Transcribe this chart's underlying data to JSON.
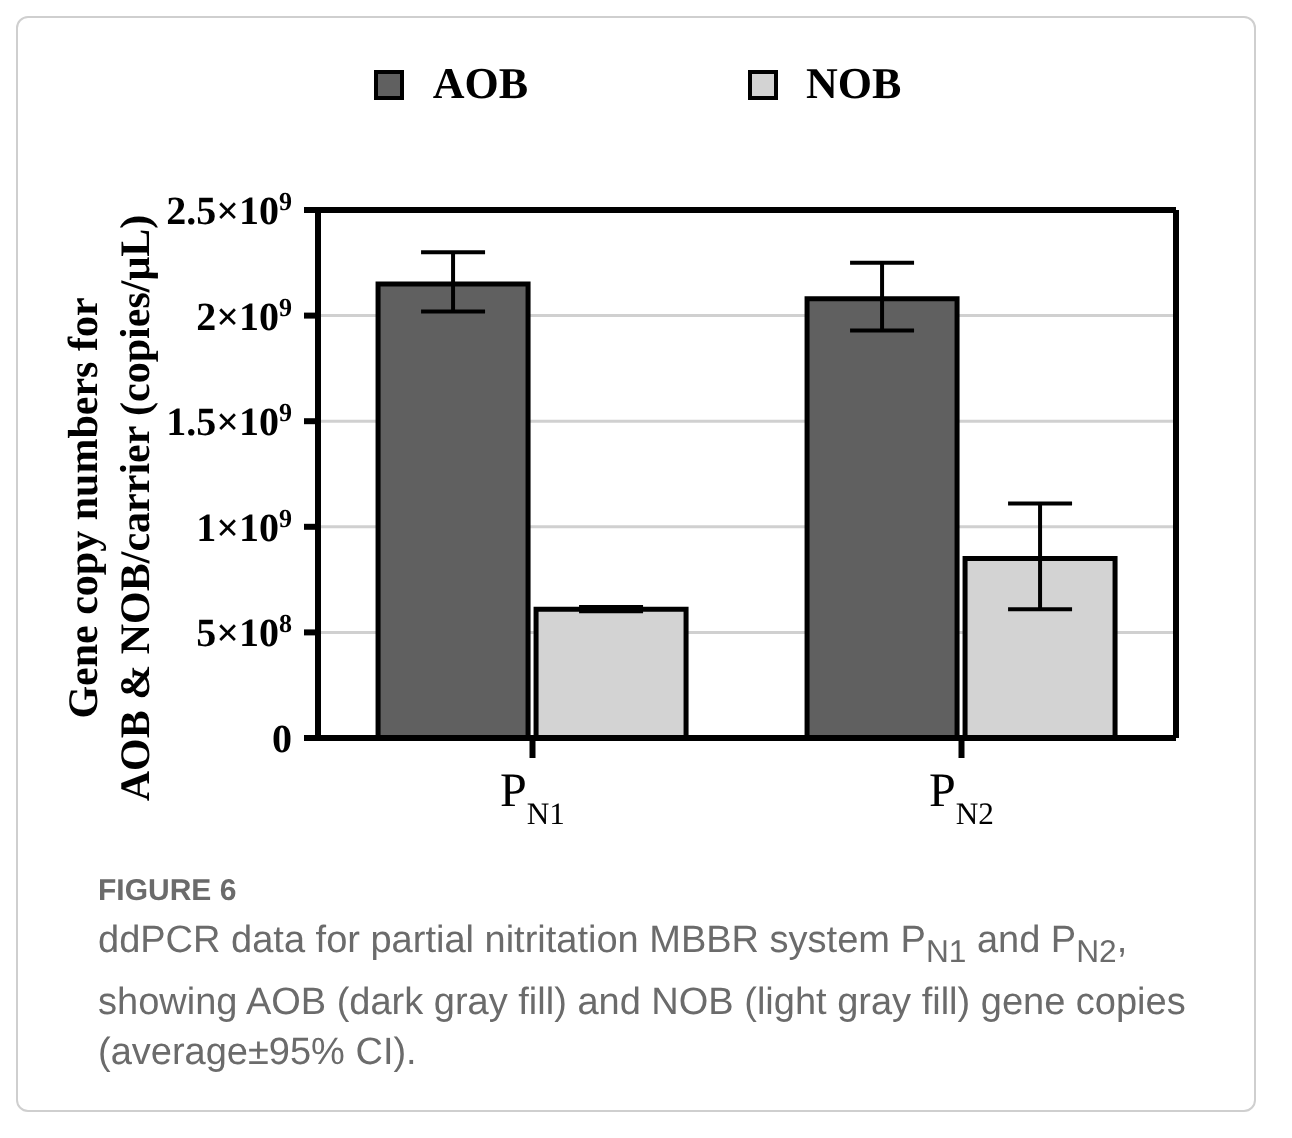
{
  "chart_data": {
    "type": "bar",
    "categories": [
      "P$_{N1}$",
      "P$_{N2}$"
    ],
    "series": [
      {
        "name": "AOB",
        "color": "#606060",
        "values": [
          2150000000,
          2080000000
        ],
        "errors": [
          [
            2020000000,
            2300000000
          ],
          [
            1930000000,
            2250000000
          ]
        ]
      },
      {
        "name": "NOB",
        "color": "#d3d3d3",
        "values": [
          610000000,
          850000000
        ],
        "errors": [
          [
            600000000,
            620000000
          ],
          [
            610000000,
            1110000000
          ]
        ]
      }
    ],
    "ylabel": "Gene copy numbers for\nAOB & NOB/carrier (copies/μL)",
    "ylim": [
      0,
      2500000000
    ],
    "yticks": [
      0,
      {
        "value": 500000000,
        "label": "5×10$^{8}$"
      },
      {
        "value": 1000000000,
        "label": "1×10$^{9}$"
      },
      {
        "value": 1500000000,
        "label": "1.5×10$^{9}$"
      },
      {
        "value": 2000000000,
        "label": "2×10$^{9}$"
      },
      {
        "value": 2500000000,
        "label": "2.5×10$^{9}$"
      }
    ],
    "grid": "y",
    "legend": "top",
    "annotations": [
      "FIGURE 6",
      "ddPCR data for partial nitritation MBBR system P$_{N1}$ and P$_{N2}$, showing AOB (dark gray fill) and NOB (light gray fill) gene copies (average±95% CI)."
    ]
  }
}
